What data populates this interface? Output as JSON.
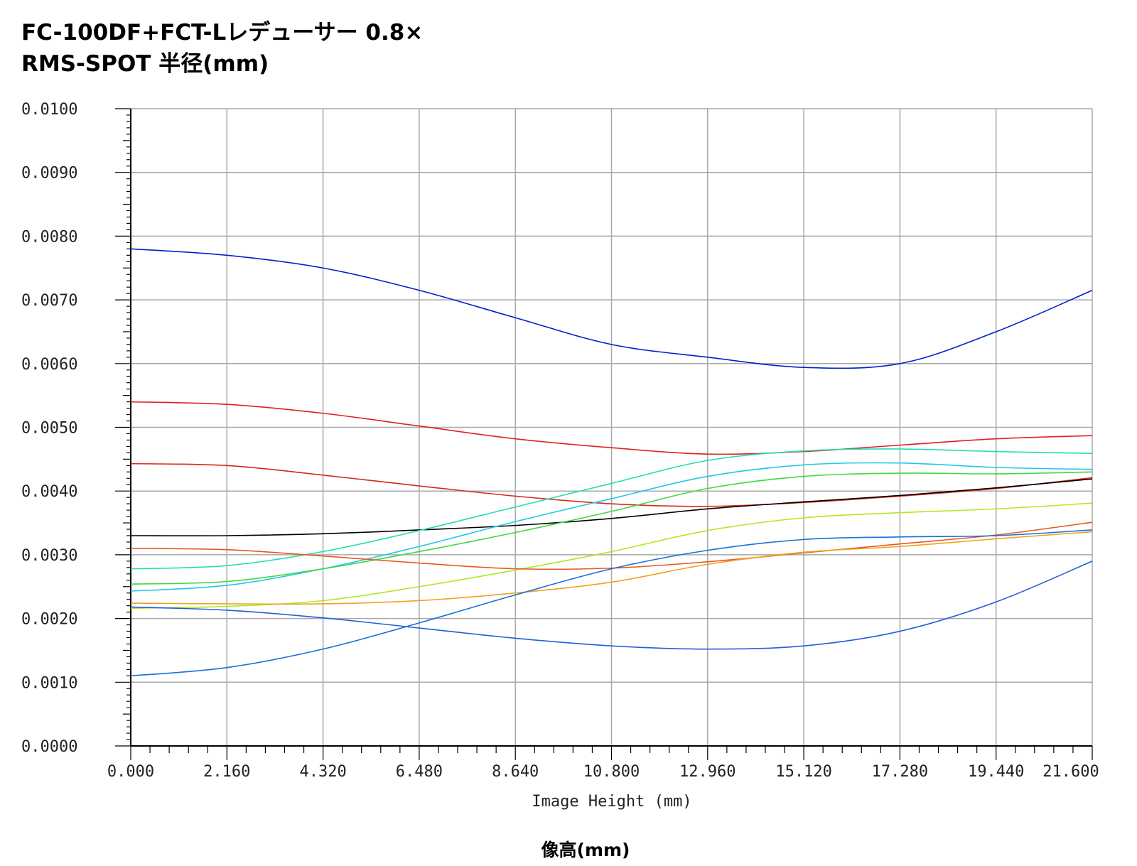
{
  "chart_data": {
    "type": "line",
    "title": "FC-100DF+FCT-Lレデューサー 0.8×",
    "subtitle": "RMS-SPOT 半径(mm)",
    "xlabel": "Image Height (mm)",
    "xlabel_secondary": "像高(mm)",
    "ylabel": "",
    "xlim": [
      0,
      21.6
    ],
    "ylim": [
      0,
      0.01
    ],
    "grid": true,
    "x_ticks": [
      "0.000",
      "2.160",
      "4.320",
      "6.480",
      "8.640",
      "10.800",
      "12.960",
      "15.120",
      "17.280",
      "19.440",
      "21.600"
    ],
    "y_ticks": [
      "0.0000",
      "0.0010",
      "0.0020",
      "0.0030",
      "0.0040",
      "0.0050",
      "0.0060",
      "0.0070",
      "0.0080",
      "0.0090",
      "0.0100"
    ],
    "x": [
      0,
      2.16,
      4.32,
      6.48,
      8.64,
      10.8,
      12.96,
      15.12,
      17.28,
      19.44,
      21.6
    ],
    "series": [
      {
        "color": "#0020d0",
        "values": [
          0.0078,
          0.0077,
          0.0075,
          0.00715,
          0.00672,
          0.0063,
          0.0061,
          0.00594,
          0.006,
          0.0065,
          0.00715
        ]
      },
      {
        "color": "#e02020",
        "values": [
          0.0054,
          0.00536,
          0.00522,
          0.00502,
          0.00482,
          0.00468,
          0.00458,
          0.00462,
          0.00472,
          0.00482,
          0.00487
        ]
      },
      {
        "color": "#d82818",
        "values": [
          0.00443,
          0.0044,
          0.00425,
          0.00408,
          0.00392,
          0.0038,
          0.00376,
          0.00382,
          0.00392,
          0.00404,
          0.00421
        ]
      },
      {
        "color": "#000000",
        "values": [
          0.0033,
          0.0033,
          0.00333,
          0.00339,
          0.00346,
          0.00357,
          0.00372,
          0.00383,
          0.00393,
          0.00405,
          0.00419
        ]
      },
      {
        "color": "#20e0b0",
        "values": [
          0.00278,
          0.00283,
          0.00305,
          0.00338,
          0.00375,
          0.00412,
          0.00448,
          0.00463,
          0.00466,
          0.00462,
          0.00459
        ]
      },
      {
        "color": "#20c8e8",
        "values": [
          0.00243,
          0.00252,
          0.00278,
          0.00313,
          0.00352,
          0.00388,
          0.00423,
          0.00441,
          0.00444,
          0.00437,
          0.00434
        ]
      },
      {
        "color": "#40d840",
        "values": [
          0.00254,
          0.00258,
          0.00278,
          0.00305,
          0.00335,
          0.00368,
          0.00404,
          0.00423,
          0.00428,
          0.00427,
          0.0043
        ]
      },
      {
        "color": "#b0e820",
        "values": [
          0.00216,
          0.00219,
          0.00228,
          0.0025,
          0.00276,
          0.00305,
          0.00338,
          0.00358,
          0.00366,
          0.00372,
          0.00381
        ]
      },
      {
        "color": "#e85820",
        "values": [
          0.0031,
          0.00308,
          0.00298,
          0.00287,
          0.00278,
          0.00279,
          0.00289,
          0.00303,
          0.00317,
          0.00331,
          0.00351
        ]
      },
      {
        "color": "#f0a020",
        "values": [
          0.00224,
          0.00223,
          0.00223,
          0.00228,
          0.0024,
          0.00257,
          0.00285,
          0.00304,
          0.00313,
          0.00325,
          0.00336
        ]
      },
      {
        "color": "#2060d8",
        "values": [
          0.00218,
          0.00213,
          0.00201,
          0.00185,
          0.00169,
          0.00157,
          0.00152,
          0.00157,
          0.0018,
          0.00226,
          0.0029
        ]
      },
      {
        "color": "#1870d8",
        "values": [
          0.0011,
          0.00123,
          0.00152,
          0.00193,
          0.00237,
          0.00278,
          0.00307,
          0.00324,
          0.00328,
          0.0033,
          0.00339
        ]
      }
    ]
  }
}
